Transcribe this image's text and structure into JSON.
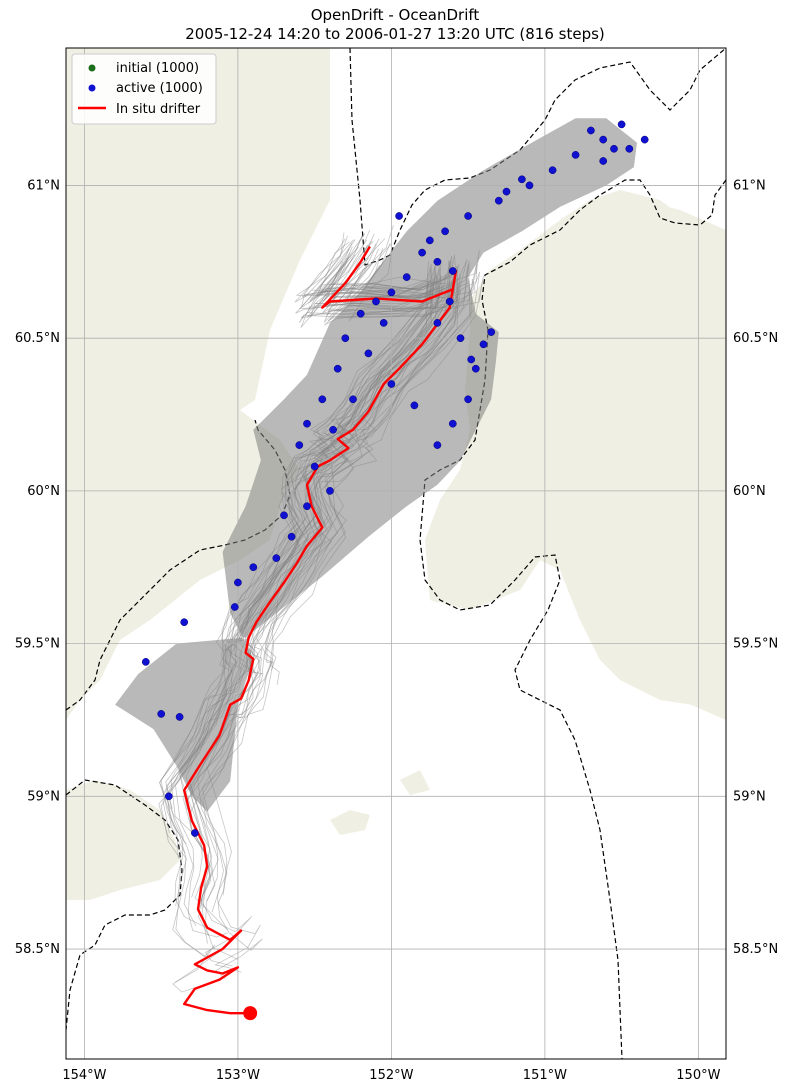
{
  "title": {
    "line1": "OpenDrift - OceanDrift",
    "line2": "2005-12-24 14:20 to 2006-01-27 13:20 UTC (816 steps)"
  },
  "map_extent": {
    "lon": [
      -154.12,
      -149.82
    ],
    "lat": [
      58.14,
      61.45
    ]
  },
  "ticks": {
    "lon": [
      {
        "value": -154.0,
        "label": "154°W"
      },
      {
        "value": -153.0,
        "label": "153°W"
      },
      {
        "value": -152.0,
        "label": "152°W"
      },
      {
        "value": -151.0,
        "label": "151°W"
      },
      {
        "value": -150.0,
        "label": "150°W"
      }
    ],
    "lat": [
      {
        "value": 61.0,
        "label": "61°N"
      },
      {
        "value": 60.5,
        "label": "60.5°N"
      },
      {
        "value": 60.0,
        "label": "60°N"
      },
      {
        "value": 59.5,
        "label": "59.5°N"
      },
      {
        "value": 59.0,
        "label": "59°N"
      },
      {
        "value": 58.5,
        "label": "58.5°N"
      }
    ]
  },
  "legend": {
    "items": [
      {
        "label": "initial (1000)",
        "kind": "dot",
        "color": "#1a6e1a"
      },
      {
        "label": "active (1000)",
        "kind": "dot",
        "color": "#1010d0"
      },
      {
        "label": "In situ drifter",
        "kind": "line",
        "color": "#ff0000"
      }
    ]
  },
  "colors": {
    "land": "#efefe3",
    "ocean": "#ffffff",
    "trajectory": "#808080",
    "active": "#1010d0",
    "drifter": "#ff0000",
    "boundary": "#000000",
    "grid": "#b0b0b0"
  },
  "drifter_track": [
    [
      -152.14,
      60.8
    ],
    [
      -152.2,
      60.75
    ],
    [
      -152.3,
      60.68
    ],
    [
      -152.45,
      60.6
    ],
    [
      -152.4,
      60.62
    ],
    [
      -152.1,
      60.63
    ],
    [
      -151.8,
      60.62
    ],
    [
      -151.6,
      60.66
    ],
    [
      -151.58,
      60.72
    ],
    [
      -151.62,
      60.6
    ],
    [
      -151.8,
      60.48
    ],
    [
      -151.95,
      60.4
    ],
    [
      -152.05,
      60.35
    ],
    [
      -152.15,
      60.26
    ],
    [
      -152.25,
      60.2
    ],
    [
      -152.35,
      60.17
    ],
    [
      -152.28,
      60.14
    ],
    [
      -152.4,
      60.1
    ],
    [
      -152.48,
      60.08
    ],
    [
      -152.55,
      60.02
    ],
    [
      -152.52,
      59.95
    ],
    [
      -152.45,
      59.88
    ],
    [
      -152.55,
      59.82
    ],
    [
      -152.62,
      59.76
    ],
    [
      -152.7,
      59.7
    ],
    [
      -152.8,
      59.63
    ],
    [
      -152.88,
      59.57
    ],
    [
      -152.93,
      59.52
    ],
    [
      -152.95,
      59.47
    ],
    [
      -152.9,
      59.45
    ],
    [
      -152.93,
      59.38
    ],
    [
      -152.98,
      59.32
    ],
    [
      -153.05,
      59.3
    ],
    [
      -153.12,
      59.2
    ],
    [
      -153.25,
      59.1
    ],
    [
      -153.35,
      59.02
    ],
    [
      -153.3,
      58.92
    ],
    [
      -153.22,
      58.84
    ],
    [
      -153.2,
      58.77
    ],
    [
      -153.24,
      58.7
    ],
    [
      -153.26,
      58.63
    ],
    [
      -153.2,
      58.57
    ],
    [
      -153.05,
      58.53
    ],
    [
      -152.98,
      58.56
    ],
    [
      -153.1,
      58.5
    ],
    [
      -153.28,
      58.45
    ],
    [
      -153.2,
      58.43
    ],
    [
      -153.1,
      58.42
    ],
    [
      -153.0,
      58.44
    ],
    [
      -153.12,
      58.4
    ],
    [
      -153.28,
      58.37
    ],
    [
      -153.35,
      58.32
    ],
    [
      -153.2,
      58.3
    ],
    [
      -153.05,
      58.29
    ],
    [
      -152.92,
      58.29
    ]
  ],
  "drifter_end": [
    -152.92,
    58.29
  ],
  "plume_outline": [
    [
      -150.6,
      61.22
    ],
    [
      -150.4,
      61.14
    ],
    [
      -150.42,
      61.06
    ],
    [
      -150.6,
      61.0
    ],
    [
      -150.9,
      60.93
    ],
    [
      -151.15,
      60.85
    ],
    [
      -151.4,
      60.78
    ],
    [
      -151.5,
      60.7
    ],
    [
      -151.45,
      60.58
    ],
    [
      -151.3,
      60.52
    ],
    [
      -151.32,
      60.42
    ],
    [
      -151.35,
      60.3
    ],
    [
      -151.45,
      60.2
    ],
    [
      -151.55,
      60.1
    ],
    [
      -151.7,
      60.02
    ],
    [
      -151.9,
      59.95
    ],
    [
      -152.15,
      59.85
    ],
    [
      -152.45,
      59.72
    ],
    [
      -152.75,
      59.6
    ],
    [
      -152.95,
      59.52
    ],
    [
      -153.4,
      59.5
    ],
    [
      -153.65,
      59.4
    ],
    [
      -153.8,
      59.3
    ],
    [
      -153.55,
      59.22
    ],
    [
      -153.4,
      59.1
    ],
    [
      -153.3,
      59.0
    ],
    [
      -153.2,
      58.95
    ],
    [
      -153.05,
      59.05
    ],
    [
      -153.0,
      59.3
    ],
    [
      -152.9,
      59.45
    ],
    [
      -153.05,
      59.6
    ],
    [
      -153.1,
      59.8
    ],
    [
      -152.95,
      59.95
    ],
    [
      -152.85,
      60.1
    ],
    [
      -152.9,
      60.2
    ],
    [
      -152.7,
      60.3
    ],
    [
      -152.55,
      60.38
    ],
    [
      -152.4,
      60.55
    ],
    [
      -152.2,
      60.65
    ],
    [
      -152.1,
      60.72
    ],
    [
      -151.9,
      60.85
    ],
    [
      -151.7,
      60.95
    ],
    [
      -151.4,
      61.05
    ],
    [
      -151.05,
      61.15
    ],
    [
      -150.8,
      61.22
    ]
  ],
  "active_particles": [
    [
      -150.7,
      61.18
    ],
    [
      -150.62,
      61.15
    ],
    [
      -150.55,
      61.12
    ],
    [
      -150.8,
      61.1
    ],
    [
      -150.95,
      61.05
    ],
    [
      -151.1,
      61.0
    ],
    [
      -151.3,
      60.95
    ],
    [
      -151.5,
      60.9
    ],
    [
      -151.65,
      60.85
    ],
    [
      -151.75,
      60.82
    ],
    [
      -151.8,
      60.78
    ],
    [
      -151.7,
      60.75
    ],
    [
      -151.6,
      60.72
    ],
    [
      -151.9,
      60.7
    ],
    [
      -152.0,
      60.65
    ],
    [
      -152.1,
      60.62
    ],
    [
      -152.2,
      60.58
    ],
    [
      -151.7,
      60.55
    ],
    [
      -151.55,
      60.5
    ],
    [
      -151.4,
      60.48
    ],
    [
      -151.35,
      60.52
    ],
    [
      -151.45,
      60.4
    ],
    [
      -151.5,
      60.3
    ],
    [
      -151.6,
      60.22
    ],
    [
      -151.7,
      60.15
    ],
    [
      -151.85,
      60.28
    ],
    [
      -152.0,
      60.35
    ],
    [
      -152.15,
      60.45
    ],
    [
      -152.3,
      60.5
    ],
    [
      -152.35,
      60.4
    ],
    [
      -152.45,
      60.3
    ],
    [
      -152.55,
      60.22
    ],
    [
      -152.6,
      60.15
    ],
    [
      -152.5,
      60.08
    ],
    [
      -152.4,
      60.0
    ],
    [
      -152.55,
      59.95
    ],
    [
      -152.65,
      59.85
    ],
    [
      -152.75,
      59.78
    ],
    [
      -152.9,
      59.75
    ],
    [
      -153.0,
      59.7
    ],
    [
      -153.02,
      59.62
    ],
    [
      -153.35,
      59.57
    ],
    [
      -153.6,
      59.44
    ],
    [
      -153.5,
      59.27
    ],
    [
      -153.45,
      59.0
    ],
    [
      -153.28,
      58.88
    ],
    [
      -153.38,
      59.26
    ],
    [
      -150.45,
      61.12
    ],
    [
      -150.62,
      61.08
    ],
    [
      -150.5,
      61.2
    ],
    [
      -150.35,
      61.15
    ],
    [
      -151.95,
      60.9
    ],
    [
      -152.05,
      60.55
    ],
    [
      -152.38,
      60.2
    ],
    [
      -151.48,
      60.43
    ],
    [
      -151.62,
      60.62
    ],
    [
      -152.25,
      60.3
    ],
    [
      -151.25,
      60.98
    ],
    [
      -151.15,
      61.02
    ],
    [
      -152.7,
      59.92
    ]
  ]
}
